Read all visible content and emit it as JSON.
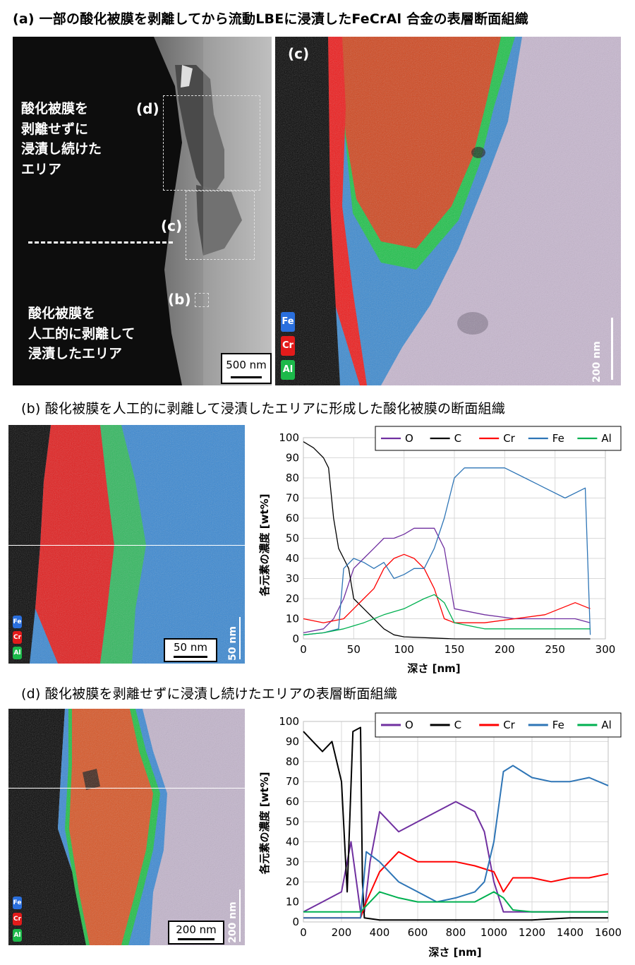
{
  "figure_a": {
    "heading": "(a) 一部の酸化被膜を剥離してから流動LBEに浸漬したFeCrAl 合金の表層断面組織",
    "sem": {
      "label_top": [
        "酸化被膜を",
        "剥離せずに",
        "浸漬し続けた",
        "エリア"
      ],
      "label_bottom": [
        "酸化被膜を",
        "人工的に剥離して",
        "浸漬したエリア"
      ],
      "box_d": "(d)",
      "box_c": "(c)",
      "box_b": "(b)",
      "scale": "500 nm"
    },
    "eds": {
      "tag": "(c)",
      "legend": [
        "Fe",
        "Cr",
        "Al"
      ],
      "scale": "200 nm"
    }
  },
  "figure_b": {
    "heading": "(b) 酸化被膜を人工的に剥離して浸漬したエリアに形成した酸化被膜の断面組織",
    "image": {
      "legend": [
        "Fe",
        "Cr",
        "Al"
      ],
      "scale_h": "50 nm",
      "scale_v": "50 nm"
    },
    "chart": {
      "ylabel": "各元素の濃度 [wt%]",
      "xlabel": "深さ [nm]"
    }
  },
  "figure_d": {
    "heading": "(d) 酸化被膜を剥離せずに浸漬し続けたエリアの表層断面組織",
    "image": {
      "legend": [
        "Fe",
        "Cr",
        "Al"
      ],
      "scale_h": "200 nm",
      "scale_v": "200 nm"
    },
    "chart": {
      "ylabel": "各元素の濃度 [wt%]",
      "xlabel": "深さ [nm]"
    }
  },
  "chart_data": [
    {
      "type": "line",
      "xlim": [
        0,
        300
      ],
      "ylim": [
        0,
        100
      ],
      "xticks": [
        "0",
        "50",
        "100",
        "150",
        "200",
        "250",
        "300"
      ],
      "yticks": [
        "0",
        "10",
        "20",
        "30",
        "40",
        "50",
        "60",
        "70",
        "80",
        "90",
        "100"
      ],
      "grid": true,
      "legend_position": "top-right",
      "series": [
        {
          "name": "O",
          "color": "#7030a0",
          "x": [
            0,
            20,
            30,
            40,
            50,
            60,
            70,
            80,
            90,
            100,
            110,
            120,
            130,
            140,
            150,
            180,
            210,
            240,
            270,
            285
          ],
          "y": [
            3,
            5,
            10,
            20,
            35,
            40,
            45,
            50,
            50,
            52,
            55,
            55,
            55,
            45,
            15,
            12,
            10,
            10,
            10,
            8
          ]
        },
        {
          "name": "C",
          "color": "#000000",
          "x": [
            0,
            10,
            20,
            25,
            30,
            35,
            40,
            45,
            50,
            60,
            70,
            80,
            90,
            100,
            150,
            200,
            285
          ],
          "y": [
            98,
            95,
            90,
            85,
            60,
            45,
            40,
            35,
            20,
            15,
            10,
            5,
            2,
            1,
            0,
            0,
            0
          ]
        },
        {
          "name": "Cr",
          "color": "#ff0000",
          "x": [
            0,
            20,
            40,
            50,
            60,
            70,
            80,
            90,
            100,
            110,
            120,
            130,
            140,
            150,
            180,
            210,
            240,
            270,
            285
          ],
          "y": [
            10,
            8,
            10,
            15,
            20,
            25,
            35,
            40,
            42,
            40,
            35,
            25,
            10,
            8,
            8,
            10,
            12,
            18,
            15
          ]
        },
        {
          "name": "Fe",
          "color": "#2e75b6",
          "x": [
            0,
            20,
            35,
            40,
            50,
            60,
            70,
            80,
            90,
            100,
            110,
            120,
            130,
            140,
            150,
            160,
            180,
            200,
            220,
            240,
            260,
            280,
            285
          ],
          "y": [
            2,
            3,
            5,
            35,
            40,
            38,
            35,
            38,
            30,
            32,
            35,
            35,
            45,
            60,
            80,
            85,
            85,
            85,
            80,
            75,
            70,
            75,
            2
          ]
        },
        {
          "name": "Al",
          "color": "#00b050",
          "x": [
            0,
            20,
            40,
            60,
            80,
            100,
            120,
            130,
            140,
            150,
            180,
            210,
            240,
            270,
            285
          ],
          "y": [
            2,
            3,
            5,
            8,
            12,
            15,
            20,
            22,
            18,
            8,
            5,
            5,
            5,
            5,
            5
          ]
        }
      ],
      "xlabel": "深さ [nm]",
      "ylabel": "各元素の濃度 [wt%]"
    },
    {
      "type": "line",
      "xlim": [
        0,
        1600
      ],
      "ylim": [
        0,
        100
      ],
      "xticks": [
        "0",
        "200",
        "400",
        "600",
        "800",
        "1000",
        "1200",
        "1400",
        "1600"
      ],
      "yticks": [
        "0",
        "10",
        "20",
        "30",
        "40",
        "50",
        "60",
        "70",
        "80",
        "90",
        "100"
      ],
      "grid": true,
      "legend_position": "top-right",
      "series": [
        {
          "name": "O",
          "color": "#7030a0",
          "x": [
            0,
            100,
            200,
            250,
            300,
            320,
            350,
            400,
            500,
            600,
            700,
            800,
            900,
            950,
            1000,
            1050,
            1200,
            1400,
            1600
          ],
          "y": [
            5,
            10,
            15,
            40,
            5,
            5,
            30,
            55,
            45,
            50,
            55,
            60,
            55,
            45,
            20,
            5,
            5,
            5,
            5
          ]
        },
        {
          "name": "C",
          "color": "#000000",
          "x": [
            0,
            50,
            100,
            150,
            200,
            230,
            260,
            300,
            310,
            320,
            400,
            600,
            800,
            1000,
            1200,
            1400,
            1600
          ],
          "y": [
            95,
            90,
            85,
            90,
            70,
            15,
            95,
            97,
            20,
            2,
            1,
            1,
            1,
            1,
            1,
            2,
            2
          ]
        },
        {
          "name": "Cr",
          "color": "#ff0000",
          "x": [
            0,
            300,
            330,
            400,
            500,
            600,
            700,
            800,
            900,
            1000,
            1050,
            1100,
            1200,
            1300,
            1400,
            1500,
            1600
          ],
          "y": [
            2,
            2,
            10,
            25,
            35,
            30,
            30,
            30,
            28,
            25,
            15,
            22,
            22,
            20,
            22,
            22,
            24
          ]
        },
        {
          "name": "Fe",
          "color": "#2e75b6",
          "x": [
            0,
            300,
            330,
            400,
            500,
            600,
            700,
            800,
            900,
            950,
            1000,
            1050,
            1100,
            1200,
            1300,
            1400,
            1500,
            1600
          ],
          "y": [
            2,
            2,
            35,
            30,
            20,
            15,
            10,
            12,
            15,
            20,
            40,
            75,
            78,
            72,
            70,
            70,
            72,
            68
          ]
        },
        {
          "name": "Al",
          "color": "#00b050",
          "x": [
            0,
            200,
            300,
            350,
            400,
            500,
            600,
            700,
            800,
            900,
            1000,
            1050,
            1100,
            1200,
            1400,
            1600
          ],
          "y": [
            5,
            5,
            5,
            10,
            15,
            12,
            10,
            10,
            10,
            10,
            15,
            12,
            6,
            5,
            5,
            5
          ]
        }
      ],
      "xlabel": "深さ [nm]",
      "ylabel": "各元素の濃度 [wt%]"
    }
  ]
}
